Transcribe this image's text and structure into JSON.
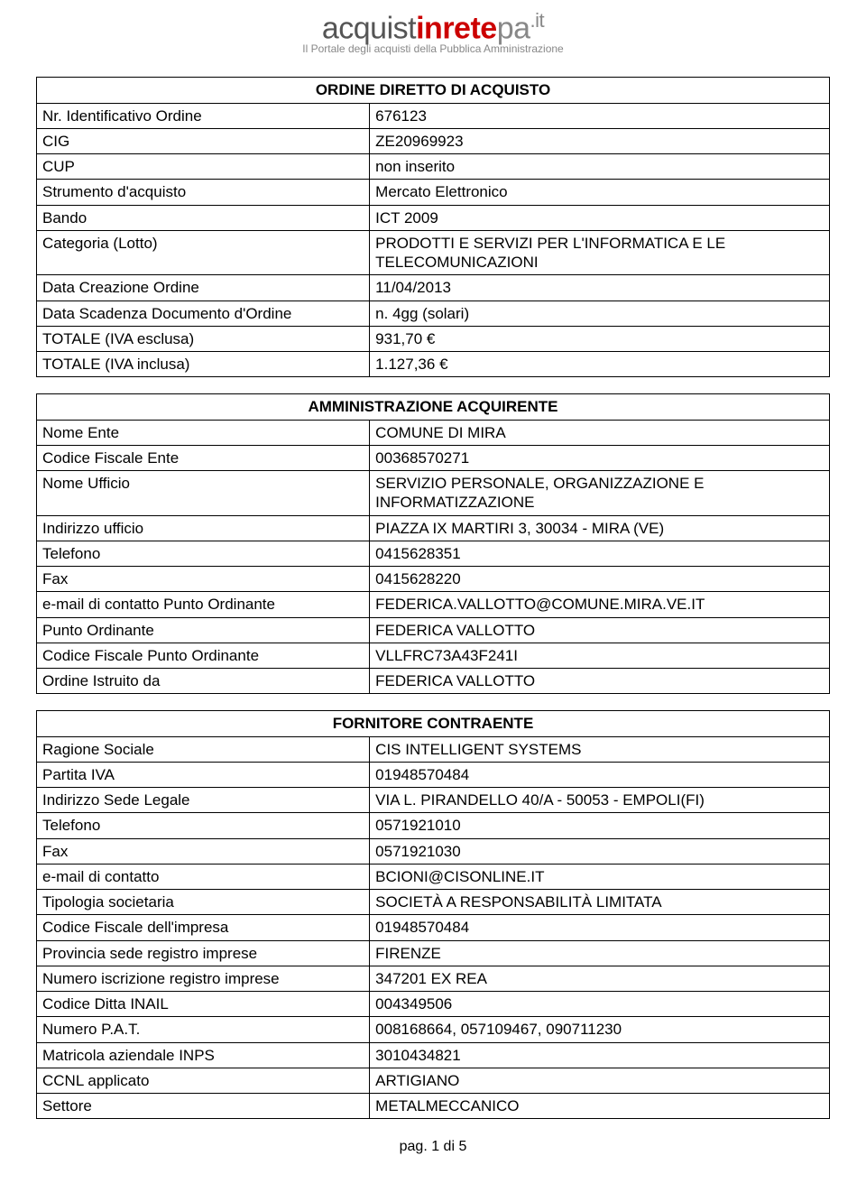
{
  "logo": {
    "part1": "acquist",
    "part2": "in",
    "part3": "rete",
    "part4": "pa",
    "part5": ".it",
    "subtitle": "Il Portale degli acquisti della Pubblica Amministrazione"
  },
  "section1": {
    "title": "ORDINE DIRETTO DI ACQUISTO",
    "rows": [
      {
        "label": "Nr. Identificativo Ordine",
        "value": "676123"
      },
      {
        "label": "CIG",
        "value": "ZE20969923"
      },
      {
        "label": "CUP",
        "value": "non inserito"
      },
      {
        "label": "Strumento d'acquisto",
        "value": "Mercato Elettronico"
      },
      {
        "label": "Bando",
        "value": "ICT 2009"
      },
      {
        "label": "Categoria (Lotto)",
        "value": "PRODOTTI E SERVIZI PER L'INFORMATICA E LE TELECOMUNICAZIONI"
      },
      {
        "label": "Data Creazione Ordine",
        "value": "11/04/2013"
      },
      {
        "label": "Data Scadenza Documento d'Ordine",
        "value": "n. 4gg (solari)"
      },
      {
        "label": "TOTALE (IVA esclusa)",
        "value": "931,70 €"
      },
      {
        "label": "TOTALE (IVA inclusa)",
        "value": "1.127,36 €"
      }
    ]
  },
  "section2": {
    "title": "AMMINISTRAZIONE ACQUIRENTE",
    "rows": [
      {
        "label": "Nome Ente",
        "value": "COMUNE DI MIRA"
      },
      {
        "label": "Codice Fiscale Ente",
        "value": "00368570271"
      },
      {
        "label": "Nome Ufficio",
        "value": "SERVIZIO PERSONALE, ORGANIZZAZIONE E INFORMATIZZAZIONE"
      },
      {
        "label": "Indirizzo ufficio",
        "value": "PIAZZA IX MARTIRI 3, 30034 - MIRA (VE)"
      },
      {
        "label": "Telefono",
        "value": "0415628351"
      },
      {
        "label": "Fax",
        "value": "0415628220"
      },
      {
        "label": "e-mail di contatto Punto Ordinante",
        "value": "FEDERICA.VALLOTTO@COMUNE.MIRA.VE.IT"
      },
      {
        "label": "Punto Ordinante",
        "value": "FEDERICA VALLOTTO"
      },
      {
        "label": "Codice Fiscale Punto Ordinante",
        "value": "VLLFRC73A43F241I"
      },
      {
        "label": "Ordine Istruito da",
        "value": "FEDERICA VALLOTTO"
      }
    ]
  },
  "section3": {
    "title": "FORNITORE CONTRAENTE",
    "rows": [
      {
        "label": "Ragione Sociale",
        "value": "CIS INTELLIGENT SYSTEMS"
      },
      {
        "label": "Partita IVA",
        "value": "01948570484"
      },
      {
        "label": "Indirizzo Sede Legale",
        "value": "VIA L. PIRANDELLO 40/A - 50053 - EMPOLI(FI)"
      },
      {
        "label": "Telefono",
        "value": "0571921010"
      },
      {
        "label": "Fax",
        "value": "0571921030"
      },
      {
        "label": "e-mail di contatto",
        "value": "BCIONI@CISONLINE.IT"
      },
      {
        "label": "Tipologia societaria",
        "value": "SOCIETÀ A RESPONSABILITÀ LIMITATA"
      },
      {
        "label": "Codice Fiscale dell'impresa",
        "value": "01948570484"
      },
      {
        "label": "Provincia sede registro imprese",
        "value": "FIRENZE"
      },
      {
        "label": "Numero iscrizione registro imprese",
        "value": "347201 EX REA"
      },
      {
        "label": "Codice Ditta INAIL",
        "value": "004349506"
      },
      {
        "label": "Numero P.A.T.",
        "value": "008168664, 057109467, 090711230"
      },
      {
        "label": "Matricola aziendale INPS",
        "value": "3010434821"
      },
      {
        "label": "CCNL applicato",
        "value": "ARTIGIANO"
      },
      {
        "label": "Settore",
        "value": "METALMECCANICO"
      }
    ]
  },
  "footer": "pag. 1 di 5"
}
